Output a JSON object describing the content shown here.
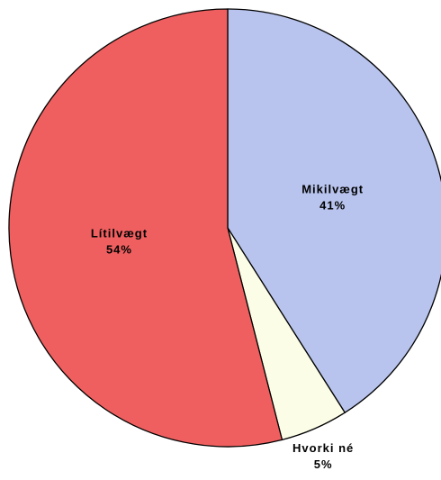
{
  "chart_data": {
    "type": "pie",
    "categories": [
      "Mikilvægt",
      "Hvorki né",
      "Lítilvægt"
    ],
    "values": [
      41,
      5,
      54
    ],
    "value_labels": [
      "41%",
      "5%",
      "54%"
    ],
    "colors": [
      "#b8c4ee",
      "#fbfde6",
      "#ef5f5f"
    ]
  }
}
